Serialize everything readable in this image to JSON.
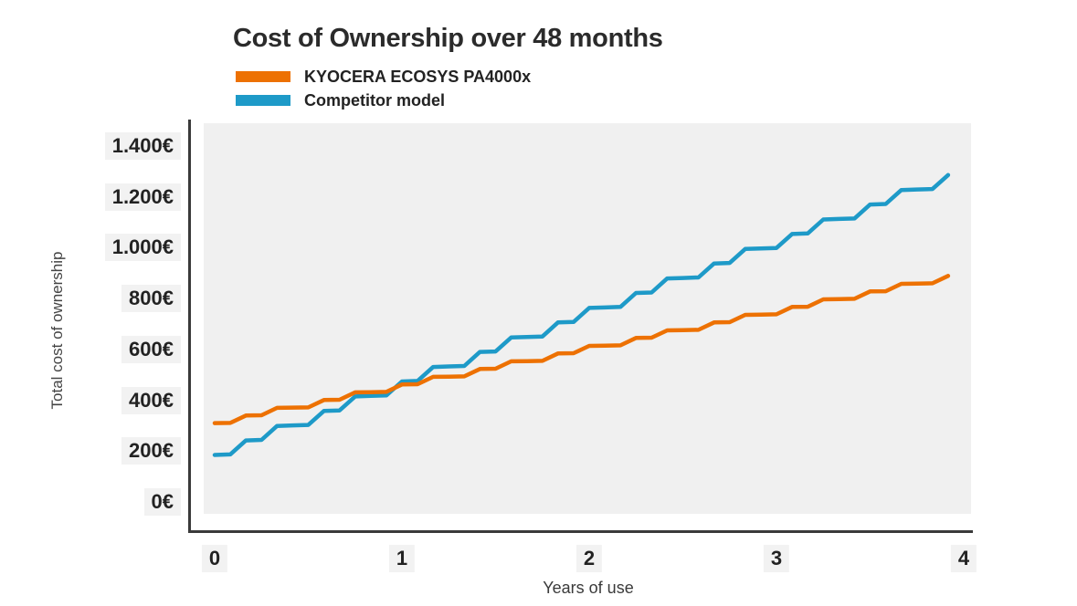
{
  "title": "Cost of Ownership over 48 months",
  "legend": [
    {
      "label": "KYOCERA ECOSYS PA4000x",
      "color": "#ed7102"
    },
    {
      "label": "Competitor model",
      "color": "#1e9ac8"
    }
  ],
  "y_axis": {
    "title": "Total cost of ownership",
    "ticks": [
      {
        "label": "1.400€",
        "value": 1400
      },
      {
        "label": "1.200€",
        "value": 1200
      },
      {
        "label": "1.000€",
        "value": 1000
      },
      {
        "label": "800€",
        "value": 800
      },
      {
        "label": "600€",
        "value": 600
      },
      {
        "label": "400€",
        "value": 400
      },
      {
        "label": "200€",
        "value": 200
      },
      {
        "label": "0€",
        "value": 0
      }
    ]
  },
  "x_axis": {
    "title": "Years of use",
    "ticks": [
      {
        "label": "0",
        "value": 0
      },
      {
        "label": "1",
        "value": 1
      },
      {
        "label": "2",
        "value": 2
      },
      {
        "label": "3",
        "value": 3
      },
      {
        "label": "4",
        "value": 4
      }
    ]
  },
  "chart_data": {
    "type": "line",
    "title": "Cost of Ownership over 48 months",
    "xlabel": "Years of use",
    "ylabel": "Total cost of ownership",
    "x_unit": "months",
    "xlim_years": [
      0,
      4
    ],
    "ylim": [
      0,
      1400
    ],
    "grid": false,
    "legend_position": "top-left",
    "plot_background": "#f0f0f0",
    "months": [
      0,
      1,
      2,
      3,
      4,
      5,
      6,
      7,
      8,
      9,
      10,
      11,
      12,
      13,
      14,
      15,
      16,
      17,
      18,
      19,
      20,
      21,
      22,
      23,
      24,
      25,
      26,
      27,
      28,
      29,
      30,
      31,
      32,
      33,
      34,
      35,
      36,
      37,
      38,
      39,
      40,
      41,
      42,
      43,
      44,
      45,
      46,
      47
    ],
    "series": [
      {
        "name": "Competitor model",
        "color": "#1e9ac8",
        "values": [
          185,
          187,
          242,
          244,
          299,
          301,
          303,
          358,
          360,
          415,
          417,
          419,
          474,
          476,
          531,
          533,
          535,
          590,
          592,
          647,
          649,
          651,
          706,
          708,
          763,
          765,
          767,
          822,
          824,
          879,
          881,
          883,
          938,
          940,
          995,
          997,
          999,
          1054,
          1056,
          1111,
          1113,
          1115,
          1170,
          1172,
          1227,
          1229,
          1231,
          1286
        ]
      },
      {
        "name": "KYOCERA ECOSYS PA4000x",
        "color": "#ed7102",
        "values": [
          310,
          311,
          340,
          341,
          370,
          371,
          372,
          401,
          402,
          431,
          432,
          433,
          462,
          463,
          492,
          493,
          494,
          523,
          524,
          553,
          554,
          555,
          584,
          585,
          614,
          615,
          616,
          645,
          646,
          675,
          676,
          677,
          706,
          707,
          736,
          737,
          738,
          767,
          768,
          797,
          798,
          799,
          828,
          829,
          858,
          859,
          860,
          889
        ]
      }
    ]
  }
}
